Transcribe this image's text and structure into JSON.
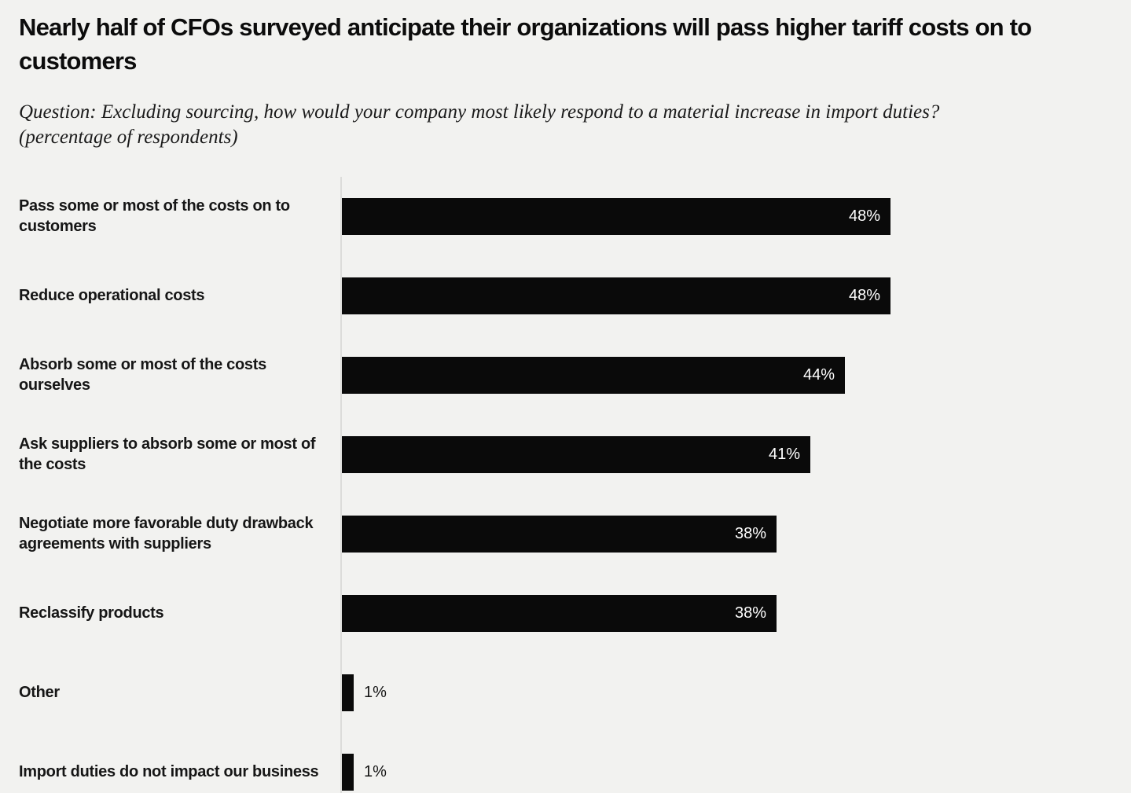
{
  "header": {
    "title": "Nearly half of CFOs surveyed anticipate their organizations will pass higher tariff costs on to customers",
    "subtitle": "Question: Excluding sourcing, how would your company most likely respond to a material increase in import duties? (percentage of respondents)"
  },
  "colors": {
    "background": "#f2f2f0",
    "bar": "#0a0a0a",
    "label_text": "#161616",
    "value_inside": "#ffffff",
    "value_outside": "#151515",
    "axis_line": "#dcdcda"
  },
  "chart_data": {
    "type": "bar",
    "orientation": "horizontal",
    "title": "Nearly half of CFOs surveyed anticipate their organizations will pass higher tariff costs on to customers",
    "subtitle": "Question: Excluding sourcing, how would your company most likely respond to a material increase in import duties? (percentage of respondents)",
    "categories": [
      "Pass some or most of the costs on to customers",
      "Reduce operational costs",
      "Absorb some or most of the costs ourselves",
      "Ask suppliers to absorb some or most of the costs",
      "Negotiate more favorable duty drawback agreements with suppliers",
      "Reclassify products",
      "Other",
      "Import duties do not impact our business"
    ],
    "values": [
      48,
      48,
      44,
      41,
      38,
      38,
      1,
      1
    ],
    "value_labels": [
      "48%",
      "48%",
      "44%",
      "41%",
      "38%",
      "38%",
      "1%",
      "1%"
    ],
    "xlabel": "",
    "ylabel": "",
    "xlim": [
      0,
      48
    ],
    "grid": false,
    "legend": false,
    "value_label_style": "inside bar right-aligned in white; outside bar in black when bar too small"
  }
}
